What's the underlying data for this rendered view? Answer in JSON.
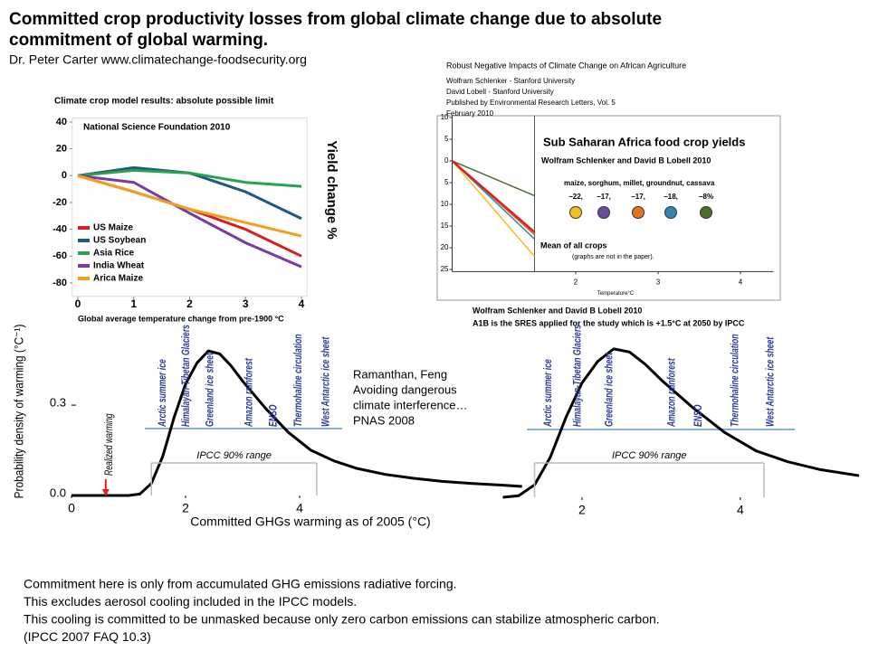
{
  "title": [
    "Committed crop productivity losses from global climate change due to absolute",
    "commitment of global warming."
  ],
  "author": "Dr. Peter Carter  www.climatechange-foodsecurity.org",
  "reference": [
    "Ramanthan, Feng",
    "Avoiding dangerous",
    "climate interference…",
    "PNAS 2008"
  ],
  "notes": [
    "Commitment here is only from accumulated GHG emissions radiative forcing.",
    "This excludes aerosol cooling included in the  IPCC  models.",
    "This cooling is committed to be unmasked because only zero carbon emissions can stabilize atmospheric carbon.",
    "(IPCC 2007 FAQ 10.3)"
  ],
  "chart_data": [
    {
      "type": "line",
      "title": "Climate crop model results:  absolute possible limit",
      "subtitle": "National Science Foundation 2010",
      "xlabel": "Global average temperature change from pre-1900   °C",
      "ylabel": "Yield change %",
      "x": [
        0,
        1,
        2,
        3,
        4
      ],
      "xlim": [
        -0.1,
        4.1
      ],
      "xticks": [
        0,
        1,
        2,
        3,
        4
      ],
      "ylim": [
        -90,
        43
      ],
      "yticks": [
        40,
        20,
        0,
        -20,
        -40,
        -60,
        -80
      ],
      "legend": "lower left",
      "series": [
        {
          "name": "US Maize",
          "color": "#d42020",
          "values": [
            0,
            -12,
            -25,
            -40,
            -60
          ]
        },
        {
          "name": "US Soybean",
          "color": "#1f5a7a",
          "values": [
            0,
            6,
            2,
            -12,
            -32
          ]
        },
        {
          "name": "Asia Rice",
          "color": "#2aa050",
          "values": [
            0,
            4,
            2,
            -5,
            -8
          ]
        },
        {
          "name": "India Wheat",
          "color": "#7a3aa0",
          "values": [
            0,
            -5,
            -28,
            -50,
            -68
          ]
        },
        {
          "name": "Arica Maize",
          "color": "#f0a020",
          "values": [
            0,
            -12,
            -25,
            -35,
            -45
          ]
        }
      ]
    },
    {
      "type": "slope",
      "header": [
        "Robust Negative Impacts of Climate Change on African Agriculture",
        "Wolfram Schlenker - Stanford University",
        "David Lobell - Stanford University",
        "Published by Environmental Research Letters, Vol. 5",
        "February 2010"
      ],
      "title": "Sub Saharan Africa food crop yields",
      "subtitle": "Wolfram Schlenker and David B Lobell  2010",
      "crops": "maize, sorghum, millet, groundnut, cassava",
      "values": [
        -22,
        -17,
        -17,
        -18,
        -8
      ],
      "value_labels": [
        "−22,",
        "−17,",
        "−17,",
        "−18,",
        "−8%"
      ],
      "colors": [
        "#f0c020",
        "#6a4ca0",
        "#e87020",
        "#2e88b0",
        "#4a7030"
      ],
      "marker_x": 1.5,
      "mean": {
        "label": "Mean of all crops",
        "value": -16.4,
        "color": "#e02020"
      },
      "note": "(graphs are not in the paper).",
      "xlabel": "Temperature°C",
      "xlim": [
        0.5,
        4.4
      ],
      "xticks": [
        2,
        3,
        4
      ],
      "ylim": [
        -25.5,
        10.5
      ],
      "yticks": [
        10,
        5,
        0,
        {
          "value": -5,
          "label": "5"
        },
        {
          "value": -10,
          "label": "10"
        },
        {
          "value": -15,
          "label": "15"
        },
        {
          "value": -20,
          "label": "20"
        },
        {
          "value": -25,
          "label": "25"
        }
      ],
      "caption": [
        "Wolfram Schlenker and David B Lobell 2010",
        "A1B is the SRES applied for the study which is +1.5°C at 2050 by IPCC"
      ]
    },
    {
      "type": "density",
      "ylabel": "Probability density of warming (°C⁻¹)",
      "xlabel": "Committed GHGs warming as of 2005 (°C)",
      "color": "#000000",
      "x": [
        0,
        0.5,
        1.0,
        1.2,
        1.4,
        1.6,
        1.8,
        2.0,
        2.2,
        2.4,
        2.6,
        2.8,
        3.0,
        3.4,
        3.8,
        4.2,
        4.6,
        5.0,
        5.5,
        6.0,
        6.5,
        7.0,
        7.5,
        7.9
      ],
      "values": [
        0,
        0,
        0,
        0.005,
        0.04,
        0.13,
        0.26,
        0.37,
        0.44,
        0.48,
        0.47,
        0.43,
        0.38,
        0.29,
        0.21,
        0.15,
        0.115,
        0.09,
        0.07,
        0.057,
        0.047,
        0.04,
        0.035,
        0.03
      ],
      "xlim": [
        0,
        7.9
      ],
      "xticks": [
        0,
        2,
        4
      ],
      "ylim": [
        0,
        0.52
      ],
      "yticks": [
        {
          "value": 0,
          "label": "0.0"
        },
        0.3
      ],
      "tipping": [
        {
          "text": "Arctic summer ice",
          "x": 1.54
        },
        {
          "text": "Himalayan-Tibetan Glaciers",
          "x": 1.95
        },
        {
          "text": "Greenland ice sheet",
          "x": 2.37
        },
        {
          "text": "Amazon rainforest",
          "x": 3.05
        },
        {
          "text": "ENSO",
          "x": 3.48
        },
        {
          "text": "Thermohaline circulation",
          "x": 3.92
        },
        {
          "text": "West Antarctic ice sheet",
          "x": 4.4
        }
      ],
      "range": {
        "label": "IPCC 90% range",
        "values": [
          1.4,
          4.3
        ]
      },
      "realized": {
        "text": "Realized warming",
        "x": 0.6
      }
    },
    {
      "type": "density",
      "color": "#000000",
      "x": [
        1.0,
        1.2,
        1.4,
        1.6,
        1.8,
        2.0,
        2.2,
        2.4,
        2.6,
        2.8,
        3.0,
        3.4,
        3.8,
        4.2,
        4.6,
        5.0,
        5.5
      ],
      "values": [
        0,
        0.005,
        0.04,
        0.13,
        0.26,
        0.37,
        0.44,
        0.48,
        0.47,
        0.43,
        0.38,
        0.29,
        0.21,
        0.15,
        0.115,
        0.09,
        0.07
      ],
      "xlim": [
        0.85,
        5.5
      ],
      "xticks": [
        2,
        4
      ],
      "ylim": [
        0,
        0.52
      ],
      "tipping": [
        {
          "text": "Arctic summer ice",
          "x": 1.53
        },
        {
          "text": "Himalayan-Tibetan Glaciers",
          "x": 1.9
        },
        {
          "text": "Greenland ice sheet",
          "x": 2.3
        },
        {
          "text": "Amazon rainforest",
          "x": 3.09
        },
        {
          "text": "ENSO",
          "x": 3.43
        },
        {
          "text": "Thermohaline circulation",
          "x": 3.89
        },
        {
          "text": "West Antarctic ice sheet",
          "x": 4.34
        }
      ],
      "range": {
        "label": "IPCC 90% range",
        "values": [
          1.4,
          4.3
        ]
      }
    }
  ]
}
